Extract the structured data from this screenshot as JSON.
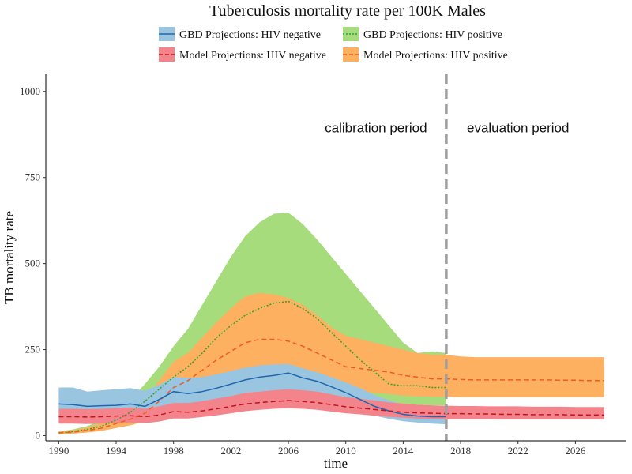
{
  "chart_data": {
    "type": "area",
    "title": "Tuberculosis mortality rate per 100K Males",
    "xlabel": "time",
    "ylabel": "TB mortality rate",
    "xlim": [
      1989.1,
      2029.5
    ],
    "ylim": [
      -15,
      1050
    ],
    "x_ticks": [
      1990,
      1994,
      1998,
      2002,
      2006,
      2010,
      2014,
      2018,
      2022,
      2026
    ],
    "y_ticks": [
      0,
      250,
      500,
      750,
      1000
    ],
    "grid": false,
    "legend_position": "top",
    "vline": {
      "x": 2017,
      "color": "#9e9e9e",
      "style": "dashed"
    },
    "annotations": [
      {
        "text": "calibration period",
        "x": 2012.1,
        "y": 895
      },
      {
        "text": "evaluation period",
        "x": 2022,
        "y": 895
      }
    ],
    "series": [
      {
        "name": "GBD Projections: HIV positive",
        "color": "#8ed163",
        "band_color": "#a6dc7c",
        "line_color": "#33a02c",
        "line_style": "dotted",
        "x": [
          1990,
          1991,
          1992,
          1993,
          1994,
          1995,
          1996,
          1997,
          1998,
          1999,
          2000,
          2001,
          2002,
          2003,
          2004,
          2005,
          2006,
          2007,
          2008,
          2009,
          2010,
          2011,
          2012,
          2013,
          2014,
          2015,
          2016,
          2017
        ],
        "mean": [
          8,
          12,
          18,
          28,
          45,
          68,
          100,
          135,
          170,
          200,
          240,
          285,
          320,
          350,
          370,
          385,
          390,
          370,
          340,
          300,
          260,
          220,
          185,
          150,
          145,
          145,
          140,
          140
        ],
        "lower": [
          3,
          6,
          10,
          17,
          28,
          40,
          60,
          82,
          100,
          118,
          140,
          160,
          175,
          185,
          190,
          195,
          195,
          185,
          170,
          150,
          132,
          118,
          105,
          97,
          92,
          90,
          88,
          88
        ],
        "upper": [
          12,
          18,
          28,
          45,
          70,
          105,
          150,
          200,
          260,
          310,
          380,
          450,
          520,
          580,
          620,
          645,
          648,
          615,
          570,
          520,
          470,
          420,
          370,
          320,
          270,
          240,
          245,
          240
        ]
      },
      {
        "name": "Model Projections: HIV positive",
        "color": "#fba84b",
        "band_color": "#fdb05f",
        "line_color": "#f15a22",
        "line_style": "dashed",
        "x": [
          1990,
          1991,
          1992,
          1993,
          1994,
          1995,
          1996,
          1997,
          1998,
          1999,
          2000,
          2001,
          2002,
          2003,
          2004,
          2005,
          2006,
          2007,
          2008,
          2009,
          2010,
          2011,
          2012,
          2013,
          2014,
          2015,
          2016,
          2017,
          2018,
          2019,
          2020,
          2021,
          2022,
          2023,
          2024,
          2025,
          2026,
          2027,
          2028
        ],
        "mean": [
          8,
          10,
          15,
          22,
          35,
          48,
          65,
          100,
          140,
          160,
          190,
          220,
          245,
          270,
          280,
          280,
          275,
          260,
          240,
          220,
          200,
          195,
          190,
          185,
          175,
          170,
          165,
          165,
          163,
          162,
          162,
          162,
          162,
          162,
          162,
          161,
          161,
          160,
          160
        ],
        "lower": [
          4,
          6,
          9,
          14,
          22,
          30,
          42,
          66,
          92,
          104,
          122,
          140,
          155,
          170,
          176,
          176,
          172,
          164,
          152,
          140,
          130,
          127,
          124,
          121,
          116,
          114,
          113,
          113,
          112,
          112,
          112,
          112,
          112,
          112,
          112,
          112,
          112,
          112,
          112
        ],
        "upper": [
          12,
          16,
          24,
          36,
          54,
          75,
          105,
          160,
          215,
          240,
          285,
          330,
          370,
          405,
          415,
          410,
          400,
          380,
          350,
          315,
          290,
          280,
          270,
          260,
          250,
          240,
          235,
          235,
          230,
          228,
          228,
          228,
          228,
          228,
          228,
          228,
          228,
          228,
          228
        ]
      },
      {
        "name": "GBD Projections: HIV negative",
        "color": "#6baed6",
        "band_color": "#9ac5e0",
        "line_color": "#2166ac",
        "line_style": "solid",
        "x": [
          1990,
          1991,
          1992,
          1993,
          1994,
          1995,
          1996,
          1997,
          1998,
          1999,
          2000,
          2001,
          2002,
          2003,
          2004,
          2005,
          2006,
          2007,
          2008,
          2009,
          2010,
          2011,
          2012,
          2013,
          2014,
          2015,
          2016,
          2017
        ],
        "mean": [
          92,
          90,
          85,
          87,
          88,
          92,
          85,
          105,
          128,
          122,
          128,
          138,
          150,
          162,
          170,
          175,
          182,
          168,
          158,
          142,
          125,
          105,
          85,
          72,
          62,
          57,
          55,
          55
        ],
        "lower": [
          52,
          50,
          48,
          50,
          52,
          55,
          52,
          64,
          80,
          84,
          90,
          96,
          103,
          110,
          114,
          117,
          122,
          114,
          106,
          94,
          82,
          70,
          58,
          49,
          42,
          38,
          35,
          33
        ],
        "upper": [
          140,
          140,
          128,
          132,
          135,
          138,
          130,
          148,
          170,
          168,
          170,
          178,
          188,
          198,
          204,
          207,
          208,
          196,
          184,
          170,
          155,
          138,
          118,
          103,
          90,
          82,
          75,
          70
        ]
      },
      {
        "name": "Model Projections: HIV negative",
        "color": "#f77b86",
        "band_color": "#f4848c",
        "line_color": "#c1121f",
        "line_style": "dashed",
        "x": [
          1990,
          1991,
          1992,
          1993,
          1994,
          1995,
          1996,
          1997,
          1998,
          1999,
          2000,
          2001,
          2002,
          2003,
          2004,
          2005,
          2006,
          2007,
          2008,
          2009,
          2010,
          2011,
          2012,
          2013,
          2014,
          2015,
          2016,
          2017,
          2018,
          2019,
          2020,
          2021,
          2022,
          2023,
          2024,
          2025,
          2026,
          2027,
          2028
        ],
        "mean": [
          55,
          55,
          54,
          55,
          57,
          58,
          55,
          60,
          70,
          68,
          72,
          78,
          85,
          92,
          96,
          99,
          102,
          99,
          96,
          90,
          84,
          80,
          76,
          72,
          68,
          66,
          65,
          64,
          64,
          63,
          63,
          62,
          62,
          61,
          61,
          61,
          60,
          60,
          60
        ],
        "lower": [
          35,
          35,
          34,
          35,
          37,
          38,
          36,
          41,
          50,
          50,
          54,
          59,
          65,
          71,
          75,
          78,
          80,
          78,
          75,
          70,
          65,
          62,
          58,
          55,
          52,
          50,
          49,
          48,
          48,
          48,
          48,
          47,
          47,
          47,
          47,
          47,
          47,
          47,
          47
        ],
        "upper": [
          78,
          78,
          77,
          78,
          80,
          82,
          78,
          85,
          95,
          95,
          100,
          108,
          115,
          124,
          128,
          132,
          135,
          132,
          128,
          120,
          112,
          107,
          102,
          97,
          93,
          90,
          88,
          87,
          86,
          86,
          85,
          85,
          85,
          84,
          84,
          84,
          83,
          83,
          83
        ]
      }
    ]
  },
  "legend": [
    {
      "label": "GBD Projections: HIV negative",
      "fill": "#9ac5e0",
      "line": "#2166ac",
      "dash": ""
    },
    {
      "label": "GBD Projections: HIV positive",
      "fill": "#a6dc7c",
      "line": "#33a02c",
      "dash": "2,2"
    },
    {
      "label": "Model Projections: HIV negative",
      "fill": "#f4848c",
      "line": "#c1121f",
      "dash": "5,3"
    },
    {
      "label": "Model Projections: HIV positive",
      "fill": "#fdb05f",
      "line": "#f15a22",
      "dash": "5,3"
    }
  ]
}
